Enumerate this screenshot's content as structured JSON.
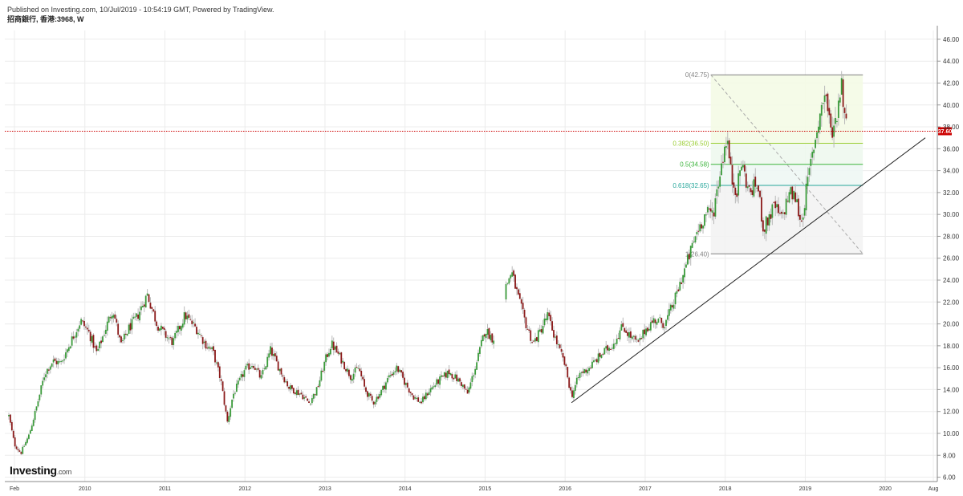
{
  "header": {
    "published": "Published on Investing.com, 10/Jul/2019 - 10:54:19 GMT, Powered by TradingView.",
    "symbol": "招商銀行, 香港:3968, W"
  },
  "logo": {
    "brand": "Investing",
    "suffix": ".com"
  },
  "colors": {
    "up": "#3a9a3a",
    "down": "#8b1a1a",
    "grid": "#ececec",
    "price_line": "#cc0000",
    "trend_line": "#222222"
  },
  "chart_data": {
    "type": "candlestick",
    "ylim": [
      5.6,
      46.8
    ],
    "y_ticks": [
      6,
      8,
      10,
      12,
      14,
      16,
      18,
      20,
      22,
      24,
      26,
      28,
      30,
      32,
      34,
      36,
      38,
      40,
      42,
      44,
      46
    ],
    "y_tick_labels": [
      "6.00",
      "8.00",
      "10.00",
      "12.00",
      "14.00",
      "16.00",
      "18.00",
      "20.00",
      "22.00",
      "24.00",
      "26.00",
      "28.00",
      "30.00",
      "32.00",
      "34.00",
      "36.00",
      "38.00",
      "40.00",
      "42.00",
      "44.00",
      "46.00"
    ],
    "x_range": [
      2009.0,
      2020.65
    ],
    "x_ticks": [
      {
        "x": 2009.12,
        "label": "Feb"
      },
      {
        "x": 2010.0,
        "label": "2010"
      },
      {
        "x": 2011.0,
        "label": "2011"
      },
      {
        "x": 2012.0,
        "label": "2012"
      },
      {
        "x": 2013.0,
        "label": "2013"
      },
      {
        "x": 2014.0,
        "label": "2014"
      },
      {
        "x": 2015.0,
        "label": "2015"
      },
      {
        "x": 2016.0,
        "label": "2016"
      },
      {
        "x": 2017.0,
        "label": "2017"
      },
      {
        "x": 2018.0,
        "label": "2018"
      },
      {
        "x": 2019.0,
        "label": "2019"
      },
      {
        "x": 2020.0,
        "label": "2020"
      },
      {
        "x": 2020.6,
        "label": "Aug"
      }
    ],
    "price_anchors": [
      [
        2009.05,
        11.6
      ],
      [
        2009.12,
        9.0
      ],
      [
        2009.2,
        8.2
      ],
      [
        2009.3,
        9.8
      ],
      [
        2009.4,
        12.5
      ],
      [
        2009.5,
        15.5
      ],
      [
        2009.6,
        16.6
      ],
      [
        2009.7,
        16.4
      ],
      [
        2009.85,
        18.8
      ],
      [
        2009.95,
        20.3
      ],
      [
        2010.05,
        19.2
      ],
      [
        2010.15,
        17.3
      ],
      [
        2010.25,
        19.4
      ],
      [
        2010.35,
        21.4
      ],
      [
        2010.45,
        18.0
      ],
      [
        2010.55,
        19.6
      ],
      [
        2010.65,
        20.6
      ],
      [
        2010.78,
        22.7
      ],
      [
        2010.9,
        20.0
      ],
      [
        2011.0,
        19.0
      ],
      [
        2011.1,
        18.3
      ],
      [
        2011.25,
        20.8
      ],
      [
        2011.4,
        19.5
      ],
      [
        2011.5,
        18.2
      ],
      [
        2011.6,
        17.5
      ],
      [
        2011.7,
        14.8
      ],
      [
        2011.78,
        11.0
      ],
      [
        2011.85,
        13.5
      ],
      [
        2012.0,
        15.8
      ],
      [
        2012.1,
        16.4
      ],
      [
        2012.2,
        15.0
      ],
      [
        2012.32,
        17.6
      ],
      [
        2012.45,
        15.6
      ],
      [
        2012.55,
        14.2
      ],
      [
        2012.7,
        13.6
      ],
      [
        2012.8,
        12.8
      ],
      [
        2012.9,
        14.0
      ],
      [
        2013.0,
        16.6
      ],
      [
        2013.08,
        18.2
      ],
      [
        2013.2,
        16.8
      ],
      [
        2013.32,
        15.2
      ],
      [
        2013.42,
        16.0
      ],
      [
        2013.5,
        14.0
      ],
      [
        2013.6,
        12.8
      ],
      [
        2013.7,
        13.8
      ],
      [
        2013.8,
        15.2
      ],
      [
        2013.9,
        16.0
      ],
      [
        2014.0,
        14.6
      ],
      [
        2014.1,
        13.4
      ],
      [
        2014.2,
        12.8
      ],
      [
        2014.3,
        13.9
      ],
      [
        2014.42,
        14.8
      ],
      [
        2014.55,
        15.6
      ],
      [
        2014.7,
        14.6
      ],
      [
        2014.78,
        13.6
      ],
      [
        2014.9,
        16.6
      ],
      [
        2015.0,
        19.5
      ],
      [
        2015.1,
        18.6
      ],
      [
        2015.15,
        19.6
      ],
      [
        2015.22,
        19.4
      ],
      [
        2015.25,
        23.2
      ],
      [
        2015.33,
        24.8
      ],
      [
        2015.42,
        22.2
      ],
      [
        2015.5,
        20.2
      ],
      [
        2015.6,
        18.2
      ],
      [
        2015.68,
        19.2
      ],
      [
        2015.78,
        20.8
      ],
      [
        2015.88,
        18.6
      ],
      [
        2016.0,
        16.2
      ],
      [
        2016.08,
        13.4
      ],
      [
        2016.18,
        15.4
      ],
      [
        2016.3,
        16.0
      ],
      [
        2016.45,
        17.2
      ],
      [
        2016.6,
        18.2
      ],
      [
        2016.72,
        19.8
      ],
      [
        2016.82,
        18.8
      ],
      [
        2016.92,
        18.2
      ],
      [
        2017.0,
        19.5
      ],
      [
        2017.12,
        20.4
      ],
      [
        2017.25,
        20.0
      ],
      [
        2017.38,
        22.4
      ],
      [
        2017.45,
        24.0
      ],
      [
        2017.55,
        26.2
      ],
      [
        2017.65,
        28.5
      ],
      [
        2017.75,
        30.0
      ],
      [
        2017.85,
        30.2
      ],
      [
        2017.95,
        34.5
      ],
      [
        2018.02,
        37.2
      ],
      [
        2018.08,
        33.2
      ],
      [
        2018.15,
        32.2
      ],
      [
        2018.2,
        34.8
      ],
      [
        2018.3,
        32.0
      ],
      [
        2018.4,
        32.8
      ],
      [
        2018.48,
        28.6
      ],
      [
        2018.55,
        29.8
      ],
      [
        2018.62,
        30.8
      ],
      [
        2018.7,
        29.5
      ],
      [
        2018.8,
        32.0
      ],
      [
        2018.88,
        31.5
      ],
      [
        2018.95,
        29.2
      ],
      [
        2019.02,
        32.5
      ],
      [
        2019.1,
        36.0
      ],
      [
        2019.18,
        39.0
      ],
      [
        2019.25,
        41.3
      ],
      [
        2019.32,
        37.5
      ],
      [
        2019.38,
        38.5
      ],
      [
        2019.45,
        42.2
      ],
      [
        2019.5,
        38.8
      ],
      [
        2019.52,
        37.6
      ]
    ],
    "last_price": 37.6,
    "last_price_label": "37.60",
    "trendline": {
      "from": [
        2016.08,
        12.8
      ],
      "to": [
        2020.5,
        37.0
      ]
    },
    "fibonacci": {
      "x_start": 2017.82,
      "x_end": 2019.72,
      "diagonal": {
        "from": [
          2017.82,
          42.75
        ],
        "to": [
          2019.72,
          26.4
        ]
      },
      "levels": [
        {
          "ratio": "0",
          "price": 42.75,
          "label": "0(42.75)",
          "color": "#808080"
        },
        {
          "ratio": "0.382",
          "price": 36.5,
          "label": "0.382(36.50)",
          "color": "#9acd32"
        },
        {
          "ratio": "0.5",
          "price": 34.58,
          "label": "0.5(34.58)",
          "color": "#3cb43c"
        },
        {
          "ratio": "0.618",
          "price": 32.65,
          "label": "0.618(32.65)",
          "color": "#26a69a"
        },
        {
          "ratio": "1",
          "price": 26.4,
          "label": "1(26.40)",
          "color": "#808080"
        }
      ]
    }
  }
}
